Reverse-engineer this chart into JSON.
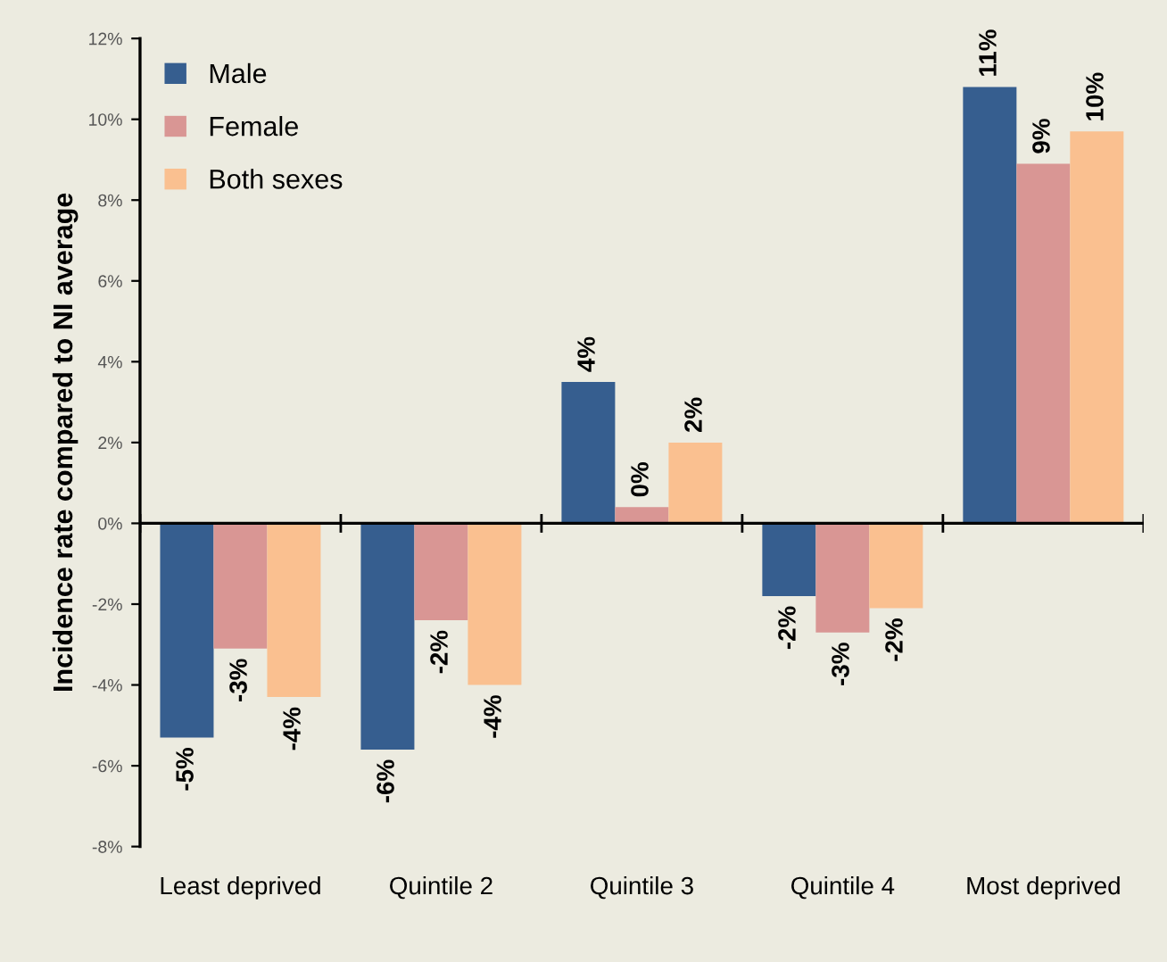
{
  "chart_data": {
    "type": "bar",
    "ylabel": "Incidence rate compared to NI average",
    "categories": [
      "Least deprived",
      "Quintile 2",
      "Quintile 3",
      "Quintile 4",
      "Most deprived"
    ],
    "series": [
      {
        "name": "Male",
        "color": "#365e8f",
        "values": [
          -5.3,
          -5.6,
          3.5,
          -1.8,
          10.8
        ],
        "value_labels": [
          "-5%",
          "-6%",
          "4%",
          "-2%",
          "11%"
        ]
      },
      {
        "name": "Female",
        "color": "#d99694",
        "values": [
          -3.1,
          -2.4,
          0.4,
          -2.7,
          8.9
        ],
        "value_labels": [
          "-3%",
          "-2%",
          "0%",
          "-3%",
          "9%"
        ]
      },
      {
        "name": "Both sexes",
        "color": "#fac090",
        "values": [
          -4.3,
          -4.0,
          2.0,
          -2.1,
          9.7
        ],
        "value_labels": [
          "-4%",
          "-4%",
          "2%",
          "-2%",
          "10%"
        ]
      }
    ],
    "ylim": [
      -8,
      12
    ],
    "yticks": [
      {
        "value": -8,
        "label": "-8%"
      },
      {
        "value": -6,
        "label": "-6%"
      },
      {
        "value": -4,
        "label": "-4%"
      },
      {
        "value": -2,
        "label": "-2%"
      },
      {
        "value": 0,
        "label": "0%"
      },
      {
        "value": 2,
        "label": "2%"
      },
      {
        "value": 4,
        "label": "4%"
      },
      {
        "value": 6,
        "label": "6%"
      },
      {
        "value": 8,
        "label": "8%"
      },
      {
        "value": 10,
        "label": "10%"
      },
      {
        "value": 12,
        "label": "12%"
      }
    ],
    "legend": "top left"
  }
}
